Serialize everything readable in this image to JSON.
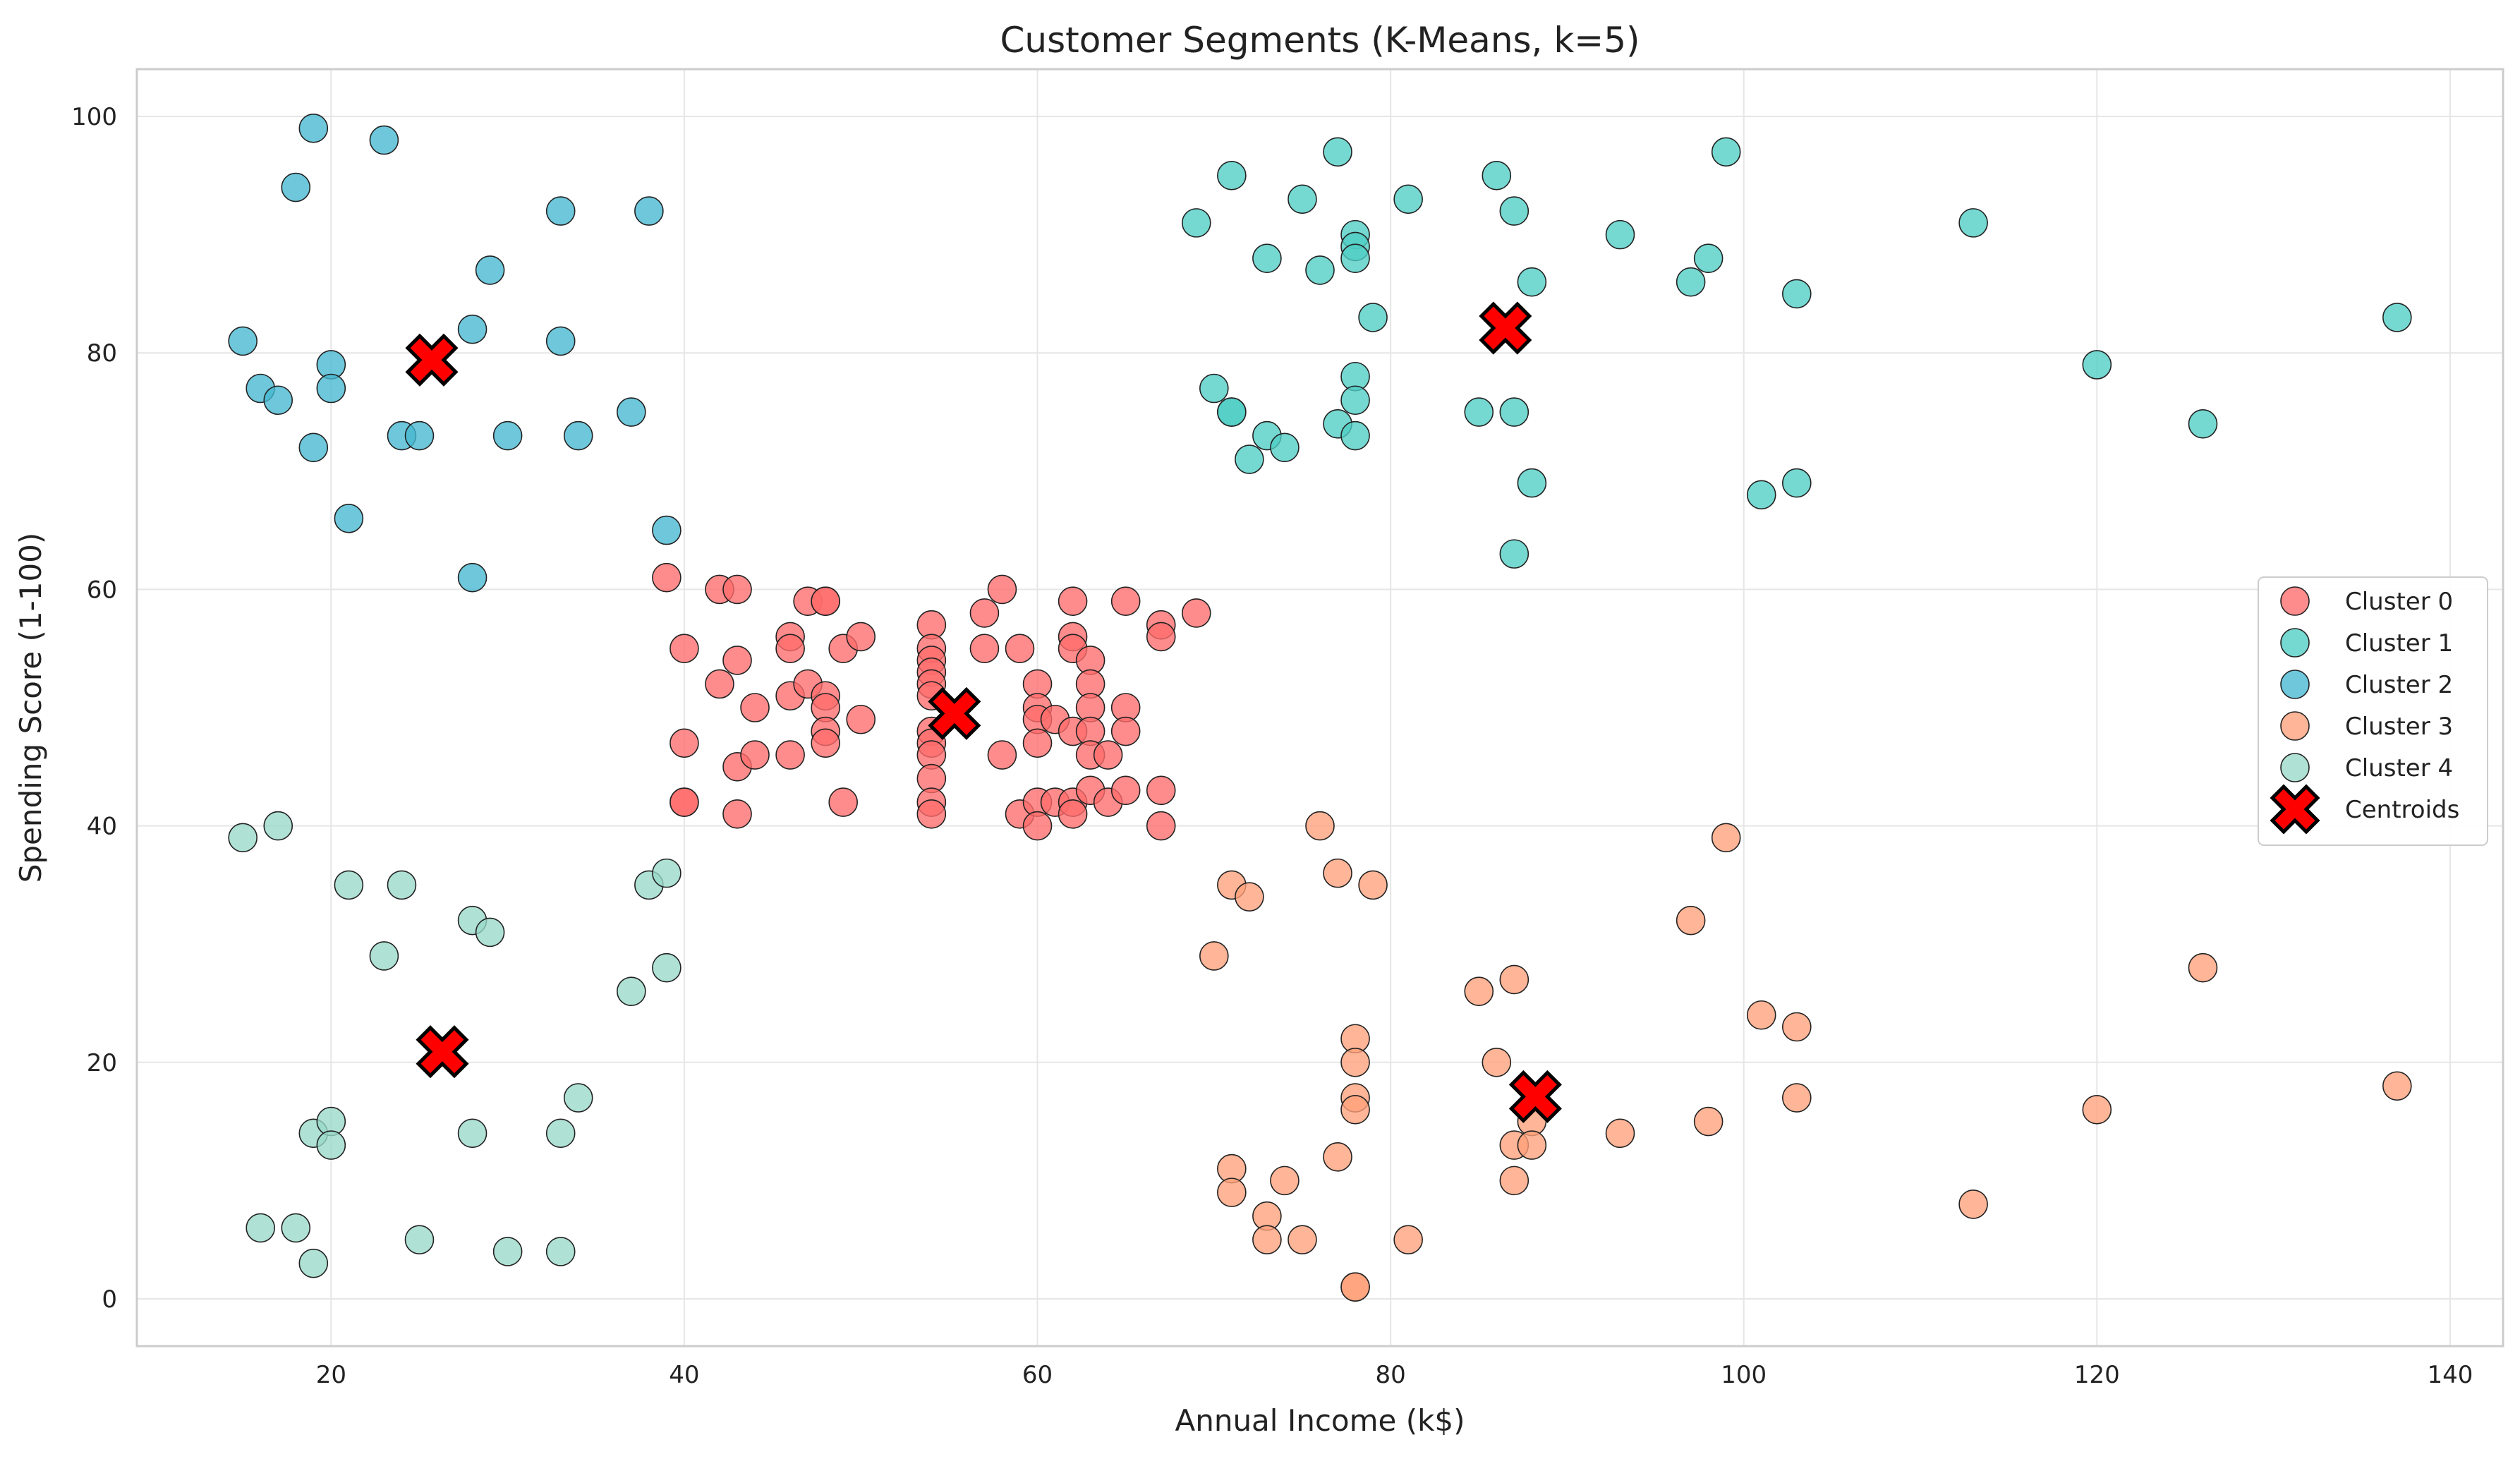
{
  "chart_data": {
    "type": "scatter",
    "title": "Customer Segments (K-Means, k=5)",
    "xlabel": "Annual Income (k$)",
    "ylabel": "Spending Score (1-100)",
    "xlim": [
      9,
      143
    ],
    "ylim": [
      -4,
      104
    ],
    "xticks": [
      20,
      40,
      60,
      80,
      100,
      120,
      140
    ],
    "yticks": [
      0,
      20,
      40,
      60,
      80,
      100
    ],
    "grid": true,
    "legend_position": "center-right",
    "series": [
      {
        "name": "Cluster 0",
        "color": "#ff6b6b",
        "marker": "circle",
        "points": [
          [
            39,
            61
          ],
          [
            40,
            55
          ],
          [
            40,
            47
          ],
          [
            40,
            42
          ],
          [
            40,
            42
          ],
          [
            42,
            60
          ],
          [
            42,
            52
          ],
          [
            43,
            60
          ],
          [
            43,
            54
          ],
          [
            43,
            45
          ],
          [
            43,
            41
          ],
          [
            44,
            50
          ],
          [
            44,
            46
          ],
          [
            46,
            56
          ],
          [
            46,
            55
          ],
          [
            46,
            51
          ],
          [
            46,
            46
          ],
          [
            47,
            59
          ],
          [
            47,
            52
          ],
          [
            48,
            59
          ],
          [
            48,
            59
          ],
          [
            48,
            51
          ],
          [
            48,
            50
          ],
          [
            48,
            48
          ],
          [
            48,
            47
          ],
          [
            49,
            55
          ],
          [
            49,
            42
          ],
          [
            50,
            56
          ],
          [
            50,
            49
          ],
          [
            54,
            57
          ],
          [
            54,
            55
          ],
          [
            54,
            54
          ],
          [
            54,
            53
          ],
          [
            54,
            52
          ],
          [
            54,
            51
          ],
          [
            54,
            48
          ],
          [
            54,
            47
          ],
          [
            54,
            46
          ],
          [
            54,
            44
          ],
          [
            54,
            42
          ],
          [
            54,
            41
          ],
          [
            57,
            58
          ],
          [
            57,
            55
          ],
          [
            58,
            60
          ],
          [
            58,
            46
          ],
          [
            59,
            55
          ],
          [
            59,
            41
          ],
          [
            60,
            52
          ],
          [
            60,
            50
          ],
          [
            60,
            49
          ],
          [
            60,
            47
          ],
          [
            60,
            42
          ],
          [
            60,
            40
          ],
          [
            61,
            49
          ],
          [
            61,
            42
          ],
          [
            62,
            59
          ],
          [
            62,
            56
          ],
          [
            62,
            55
          ],
          [
            62,
            48
          ],
          [
            62,
            42
          ],
          [
            62,
            41
          ],
          [
            63,
            54
          ],
          [
            63,
            52
          ],
          [
            63,
            50
          ],
          [
            63,
            48
          ],
          [
            63,
            46
          ],
          [
            63,
            43
          ],
          [
            64,
            46
          ],
          [
            64,
            42
          ],
          [
            65,
            59
          ],
          [
            65,
            50
          ],
          [
            65,
            48
          ],
          [
            65,
            43
          ],
          [
            67,
            57
          ],
          [
            67,
            56
          ],
          [
            67,
            43
          ],
          [
            67,
            40
          ],
          [
            69,
            58
          ]
        ]
      },
      {
        "name": "Cluster 1",
        "color": "#4ecdc4",
        "marker": "circle",
        "points": [
          [
            69,
            91
          ],
          [
            70,
            77
          ],
          [
            71,
            95
          ],
          [
            71,
            75
          ],
          [
            71,
            75
          ],
          [
            72,
            71
          ],
          [
            73,
            88
          ],
          [
            73,
            73
          ],
          [
            74,
            72
          ],
          [
            75,
            93
          ],
          [
            76,
            87
          ],
          [
            77,
            97
          ],
          [
            77,
            74
          ],
          [
            78,
            90
          ],
          [
            78,
            89
          ],
          [
            78,
            88
          ],
          [
            78,
            78
          ],
          [
            78,
            76
          ],
          [
            78,
            73
          ],
          [
            79,
            83
          ],
          [
            81,
            93
          ],
          [
            85,
            75
          ],
          [
            86,
            95
          ],
          [
            87,
            92
          ],
          [
            87,
            75
          ],
          [
            87,
            63
          ],
          [
            88,
            86
          ],
          [
            88,
            69
          ],
          [
            93,
            90
          ],
          [
            97,
            86
          ],
          [
            98,
            88
          ],
          [
            99,
            97
          ],
          [
            101,
            68
          ],
          [
            103,
            85
          ],
          [
            103,
            69
          ],
          [
            113,
            91
          ],
          [
            120,
            79
          ],
          [
            126,
            74
          ],
          [
            137,
            83
          ]
        ]
      },
      {
        "name": "Cluster 2",
        "color": "#45b7d1",
        "marker": "circle",
        "points": [
          [
            15,
            81
          ],
          [
            16,
            77
          ],
          [
            17,
            76
          ],
          [
            18,
            94
          ],
          [
            19,
            99
          ],
          [
            19,
            72
          ],
          [
            20,
            79
          ],
          [
            20,
            77
          ],
          [
            21,
            66
          ],
          [
            23,
            98
          ],
          [
            24,
            73
          ],
          [
            25,
            73
          ],
          [
            28,
            82
          ],
          [
            28,
            61
          ],
          [
            29,
            87
          ],
          [
            30,
            73
          ],
          [
            33,
            92
          ],
          [
            33,
            81
          ],
          [
            34,
            73
          ],
          [
            37,
            75
          ],
          [
            38,
            92
          ],
          [
            39,
            65
          ]
        ]
      },
      {
        "name": "Cluster 3",
        "color": "#ffa07a",
        "marker": "circle",
        "points": [
          [
            70,
            29
          ],
          [
            71,
            35
          ],
          [
            71,
            11
          ],
          [
            71,
            9
          ],
          [
            72,
            34
          ],
          [
            73,
            7
          ],
          [
            73,
            5
          ],
          [
            74,
            10
          ],
          [
            75,
            5
          ],
          [
            76,
            40
          ],
          [
            77,
            36
          ],
          [
            77,
            12
          ],
          [
            78,
            22
          ],
          [
            78,
            20
          ],
          [
            78,
            17
          ],
          [
            78,
            16
          ],
          [
            78,
            1
          ],
          [
            78,
            1
          ],
          [
            79,
            35
          ],
          [
            81,
            5
          ],
          [
            85,
            26
          ],
          [
            86,
            20
          ],
          [
            87,
            27
          ],
          [
            87,
            13
          ],
          [
            87,
            10
          ],
          [
            88,
            15
          ],
          [
            88,
            13
          ],
          [
            93,
            14
          ],
          [
            97,
            32
          ],
          [
            98,
            15
          ],
          [
            99,
            39
          ],
          [
            101,
            24
          ],
          [
            103,
            23
          ],
          [
            103,
            17
          ],
          [
            113,
            8
          ],
          [
            120,
            16
          ],
          [
            126,
            28
          ],
          [
            137,
            18
          ]
        ]
      },
      {
        "name": "Cluster 4",
        "color": "#98d8c8",
        "marker": "circle",
        "points": [
          [
            15,
            39
          ],
          [
            16,
            6
          ],
          [
            17,
            40
          ],
          [
            18,
            6
          ],
          [
            19,
            14
          ],
          [
            19,
            3
          ],
          [
            20,
            15
          ],
          [
            20,
            13
          ],
          [
            21,
            35
          ],
          [
            23,
            29
          ],
          [
            24,
            35
          ],
          [
            25,
            5
          ],
          [
            28,
            32
          ],
          [
            28,
            14
          ],
          [
            29,
            31
          ],
          [
            30,
            4
          ],
          [
            33,
            14
          ],
          [
            33,
            4
          ],
          [
            34,
            17
          ],
          [
            37,
            26
          ],
          [
            38,
            35
          ],
          [
            39,
            36
          ],
          [
            39,
            28
          ]
        ]
      },
      {
        "name": "Centroids",
        "color": "#ff0000",
        "marker": "x",
        "points": [
          [
            25.7,
            79.4
          ],
          [
            26.3,
            20.9
          ],
          [
            55.3,
            49.5
          ],
          [
            86.5,
            82.1
          ],
          [
            88.2,
            17.1
          ]
        ]
      }
    ]
  }
}
